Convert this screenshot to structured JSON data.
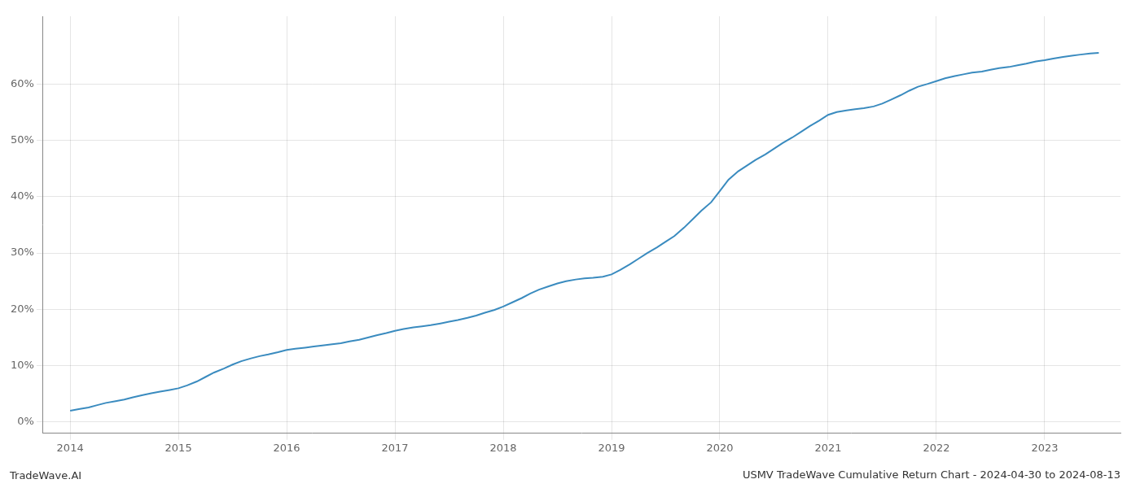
{
  "chart_data": {
    "type": "line",
    "title": "USMV TradeWave Cumulative Return Chart - 2024-04-30 to 2024-08-13",
    "annotations": [
      "TradeWave.AI"
    ],
    "x": [
      2014.0,
      2014.08,
      2014.17,
      2014.25,
      2014.33,
      2014.42,
      2014.5,
      2014.58,
      2014.67,
      2014.75,
      2014.83,
      2014.92,
      2015.0,
      2015.08,
      2015.17,
      2015.25,
      2015.33,
      2015.42,
      2015.5,
      2015.58,
      2015.67,
      2015.75,
      2015.83,
      2015.92,
      2016.0,
      2016.08,
      2016.17,
      2016.25,
      2016.33,
      2016.42,
      2016.5,
      2016.58,
      2016.67,
      2016.75,
      2016.83,
      2016.92,
      2017.0,
      2017.08,
      2017.17,
      2017.25,
      2017.33,
      2017.42,
      2017.5,
      2017.58,
      2017.67,
      2017.75,
      2017.83,
      2017.92,
      2018.0,
      2018.08,
      2018.17,
      2018.25,
      2018.33,
      2018.42,
      2018.5,
      2018.58,
      2018.67,
      2018.75,
      2018.83,
      2018.92,
      2019.0,
      2019.08,
      2019.17,
      2019.25,
      2019.33,
      2019.42,
      2019.5,
      2019.58,
      2019.67,
      2019.75,
      2019.83,
      2019.92,
      2020.0,
      2020.08,
      2020.17,
      2020.25,
      2020.33,
      2020.42,
      2020.5,
      2020.58,
      2020.67,
      2020.75,
      2020.83,
      2020.92,
      2021.0,
      2021.08,
      2021.17,
      2021.25,
      2021.33,
      2021.42,
      2021.5,
      2021.58,
      2021.67,
      2021.75,
      2021.83,
      2021.92,
      2022.0,
      2022.08,
      2022.17,
      2022.25,
      2022.33,
      2022.42,
      2022.5,
      2022.58,
      2022.67,
      2022.75,
      2022.83,
      2022.92,
      2023.0,
      2023.08,
      2023.17,
      2023.25,
      2023.33,
      2023.42,
      2023.5
    ],
    "values": [
      2.0,
      2.3,
      2.6,
      3.0,
      3.4,
      3.7,
      4.0,
      4.4,
      4.8,
      5.1,
      5.4,
      5.7,
      6.0,
      6.5,
      7.2,
      8.0,
      8.8,
      9.5,
      10.2,
      10.8,
      11.3,
      11.7,
      12.0,
      12.4,
      12.8,
      13.0,
      13.2,
      13.4,
      13.6,
      13.8,
      14.0,
      14.3,
      14.6,
      15.0,
      15.4,
      15.8,
      16.2,
      16.5,
      16.8,
      17.0,
      17.2,
      17.5,
      17.8,
      18.1,
      18.5,
      18.9,
      19.4,
      19.9,
      20.5,
      21.2,
      22.0,
      22.8,
      23.5,
      24.1,
      24.6,
      25.0,
      25.3,
      25.5,
      25.6,
      25.8,
      26.2,
      27.0,
      28.0,
      29.0,
      30.0,
      31.0,
      32.0,
      33.0,
      34.5,
      36.0,
      37.5,
      39.0,
      41.0,
      43.0,
      44.5,
      45.5,
      46.5,
      47.5,
      48.5,
      49.5,
      50.5,
      51.5,
      52.5,
      53.5,
      54.5,
      55.0,
      55.3,
      55.5,
      55.7,
      56.0,
      56.5,
      57.2,
      58.0,
      58.8,
      59.5,
      60.0,
      60.5,
      61.0,
      61.4,
      61.7,
      62.0,
      62.2,
      62.5,
      62.8,
      63.0,
      63.3,
      63.6,
      64.0,
      64.2,
      64.5,
      64.8,
      65.0,
      65.2,
      65.4,
      65.5
    ],
    "color": "#3a8bbf",
    "xlim": [
      2013.75,
      2023.7
    ],
    "ylim": [
      -2,
      72
    ],
    "xticks": [
      2014,
      2015,
      2016,
      2017,
      2018,
      2019,
      2020,
      2021,
      2022,
      2023
    ],
    "yticks": [
      {
        "value": 0,
        "label": "0%"
      },
      {
        "value": 10,
        "label": "10%"
      },
      {
        "value": 20,
        "label": "20%"
      },
      {
        "value": 30,
        "label": "30%"
      },
      {
        "value": 40,
        "label": "40%"
      },
      {
        "value": 50,
        "label": "50%"
      },
      {
        "value": 60,
        "label": "60%"
      }
    ],
    "grid": true
  }
}
